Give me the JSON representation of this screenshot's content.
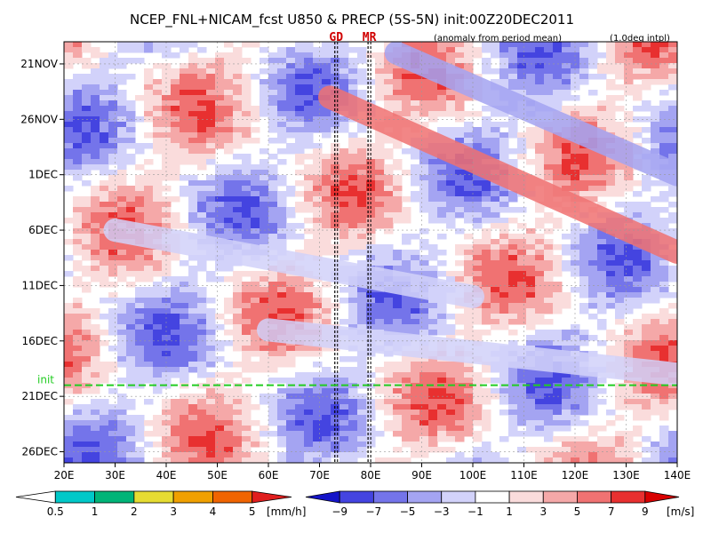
{
  "chart_data": {
    "type": "heatmap",
    "title": "NCEP_FNL+NICAM_fcst U850 & PRECP (5S-5N) init:00Z20DEC2011",
    "subtitle_left": "(anomaly from period mean)",
    "subtitle_right": "(1.0deg intpl)",
    "x_axis": {
      "range": [
        20,
        140
      ],
      "ticks": [
        20,
        30,
        40,
        50,
        60,
        70,
        80,
        90,
        100,
        110,
        120,
        130,
        140
      ],
      "tick_labels": [
        "20E",
        "30E",
        "40E",
        "50E",
        "60E",
        "70E",
        "80E",
        "90E",
        "100E",
        "110E",
        "120E",
        "130E",
        "140E"
      ]
    },
    "y_axis": {
      "range_days": [
        "2011-11-19",
        "2011-12-27"
      ],
      "ticks": [
        "2011-11-21",
        "2011-11-26",
        "2011-12-01",
        "2011-12-06",
        "2011-12-11",
        "2011-12-16",
        "2011-12-21",
        "2011-12-26"
      ],
      "tick_labels": [
        "21NOV",
        "26NOV",
        "1DEC",
        "6DEC",
        "11DEC",
        "16DEC",
        "21DEC",
        "26DEC"
      ]
    },
    "markers": [
      {
        "label": "GD",
        "lon": 73
      },
      {
        "label": "MR",
        "lon": 79.5
      }
    ],
    "init_line": {
      "label": "init",
      "date": "2011-12-20",
      "color": "#22cc22"
    },
    "u850_colorbar": {
      "levels": [
        -9,
        -7,
        -5,
        -3,
        -1,
        1,
        3,
        5,
        7,
        9
      ],
      "labels": [
        "−9",
        "−7",
        "−5",
        "−3",
        "−1",
        "1",
        "3",
        "5",
        "7",
        "9"
      ],
      "colors": [
        "#1414c8",
        "#4444e0",
        "#7474ea",
        "#a4a4f2",
        "#d2d2fa",
        "#ffffff",
        "#fadcdc",
        "#f5a8a8",
        "#f07272",
        "#e83030",
        "#d80000"
      ],
      "unit": "[m/s]"
    },
    "precip_colorbar": {
      "levels": [
        0.5,
        1,
        2,
        3,
        4,
        5
      ],
      "labels": [
        "0.5",
        "1",
        "2",
        "3",
        "4",
        "5"
      ],
      "colors": [
        "#ffffff",
        "#00c8c8",
        "#00b478",
        "#e6dc32",
        "#f0a000",
        "#f06400",
        "#e01e1e"
      ],
      "unit": "[mm/h]"
    },
    "bands": [
      {
        "start": "2011-11-24",
        "lon_start": 72,
        "end": "2011-12-08",
        "lon_end": 140,
        "u850": 5
      },
      {
        "start": "2011-11-20",
        "lon_start": 85,
        "end": "2011-12-01",
        "lon_end": 140,
        "u850": -5
      },
      {
        "start": "2011-12-06",
        "lon_start": 30,
        "end": "2011-12-12",
        "lon_end": 100,
        "u850": -3
      },
      {
        "start": "2011-12-15",
        "lon_start": 60,
        "end": "2011-12-19",
        "lon_end": 140,
        "u850": -3
      }
    ]
  }
}
